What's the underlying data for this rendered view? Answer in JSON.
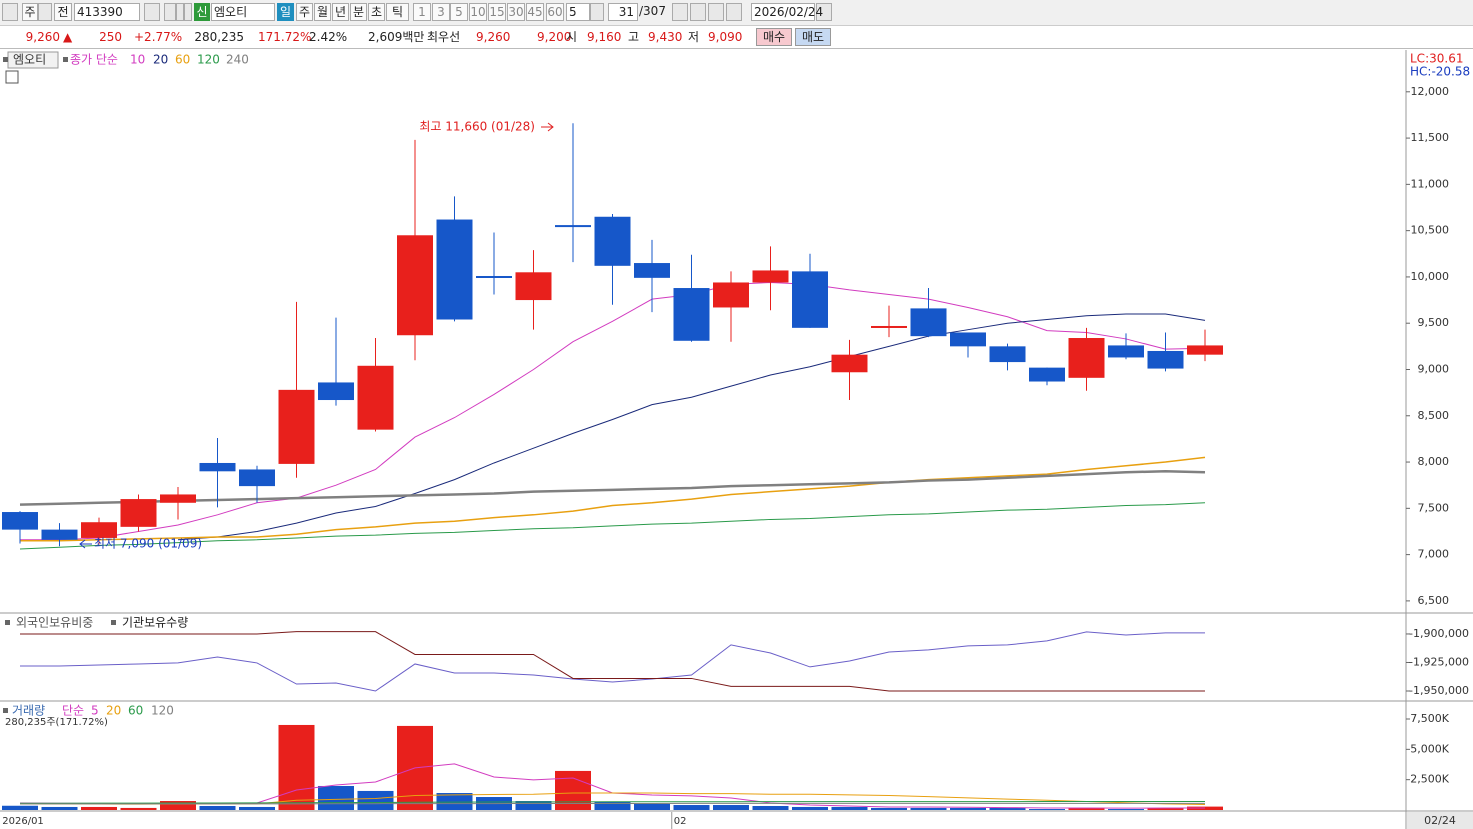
{
  "toolbar": {
    "period_type": "주",
    "prev": "전",
    "code": "413390",
    "credit": "신",
    "name": "엠오티",
    "intervals": [
      "일",
      "주",
      "월",
      "년",
      "분",
      "초",
      "틱"
    ],
    "minutes": [
      "1",
      "3",
      "5",
      "10",
      "15",
      "30",
      "45",
      "60"
    ],
    "count": "5",
    "position": "31",
    "total": "/307",
    "date": "2026/02/24"
  },
  "quote": {
    "price": "9,260",
    "arrow": "▲",
    "change": "250",
    "change_rate": "+2.77%",
    "volume": "280,235",
    "volume_rate": "171.72%",
    "turnover": "2.42%",
    "amount": "2,609백만",
    "best_label": "최우선",
    "ask": "9,260",
    "bid": "9,200",
    "open_label": "시",
    "open": "9,160",
    "high_label": "고",
    "high": "9,430",
    "low_label": "저",
    "low": "9,090",
    "buy": "매수",
    "sell": "매도"
  },
  "chart_data": [
    {
      "type": "candlestick",
      "title": "엠오티",
      "legend_title": "종가 단순",
      "lc": "LC:30.61",
      "hc": "HC:-20.58",
      "open": [
        7460,
        7270,
        7180,
        7300,
        7560,
        7990,
        7920,
        7980,
        8860,
        8350,
        9370,
        10620,
        10010,
        9750,
        10560,
        10650,
        10150,
        9880,
        9670,
        9940,
        10060,
        8970,
        9460,
        9660,
        9400,
        9250,
        9020,
        8910,
        9260,
        9200,
        9160
      ],
      "high": [
        7470,
        7340,
        7400,
        7650,
        7730,
        8260,
        7960,
        9730,
        9560,
        9340,
        11480,
        10870,
        10480,
        10290,
        11660,
        10680,
        10400,
        10240,
        10060,
        10330,
        10250,
        9320,
        9690,
        9880,
        9400,
        9280,
        9020,
        9450,
        9390,
        9400,
        9430
      ],
      "low": [
        7120,
        7090,
        7110,
        7250,
        7380,
        7510,
        7560,
        7830,
        8610,
        8330,
        9100,
        9520,
        9810,
        9430,
        10160,
        9700,
        9620,
        9300,
        9300,
        9640,
        9450,
        8670,
        9350,
        9350,
        9130,
        8990,
        8830,
        8770,
        9110,
        8980,
        9090
      ],
      "close": [
        7270,
        7160,
        7350,
        7600,
        7650,
        7900,
        7740,
        8780,
        8670,
        9040,
        10450,
        9540,
        10000,
        10050,
        10550,
        10120,
        9990,
        9310,
        9940,
        10070,
        9450,
        9160,
        9470,
        9360,
        9250,
        9080,
        8870,
        9340,
        9130,
        9010,
        9260
      ],
      "up_color": "#e8201c",
      "down_color": "#1657c9",
      "series": [
        {
          "name": "10",
          "color": "#d23cc0",
          "values": [
            7160,
            7160,
            7180,
            7250,
            7320,
            7430,
            7560,
            7610,
            7750,
            7920,
            8270,
            8480,
            8730,
            9000,
            9300,
            9520,
            9760,
            9810,
            9920,
            9940,
            9920,
            9860,
            9810,
            9760,
            9670,
            9570,
            9420,
            9400,
            9330,
            9220,
            9230
          ]
        },
        {
          "name": "20",
          "color": "#1a2a7a",
          "values": [
            null,
            null,
            null,
            null,
            7160,
            7190,
            7250,
            7340,
            7450,
            7520,
            7660,
            7810,
            7990,
            8150,
            8310,
            8460,
            8620,
            8700,
            8820,
            8940,
            9030,
            9140,
            9250,
            9360,
            9430,
            9500,
            9540,
            9580,
            9600,
            9600,
            9530
          ]
        },
        {
          "name": "60",
          "color": "#e8a010",
          "values": [
            7150,
            7150,
            7160,
            7170,
            7180,
            7190,
            7190,
            7220,
            7270,
            7300,
            7340,
            7360,
            7400,
            7430,
            7470,
            7530,
            7560,
            7600,
            7650,
            7680,
            7710,
            7740,
            7780,
            7810,
            7830,
            7850,
            7870,
            7920,
            7960,
            8000,
            8050
          ]
        },
        {
          "name": "120",
          "color": "#2a9a4a",
          "values": [
            7060,
            7080,
            7100,
            7110,
            7130,
            7150,
            7160,
            7180,
            7200,
            7210,
            7230,
            7240,
            7260,
            7280,
            7290,
            7310,
            7330,
            7340,
            7360,
            7380,
            7390,
            7410,
            7430,
            7440,
            7460,
            7480,
            7490,
            7510,
            7530,
            7540,
            7560
          ]
        },
        {
          "name": "240",
          "color": "#808080",
          "values": [
            7540,
            7550,
            7560,
            7570,
            7580,
            7590,
            7600,
            7610,
            7620,
            7630,
            7640,
            7650,
            7660,
            7680,
            7690,
            7700,
            7710,
            7720,
            7740,
            7750,
            7760,
            7770,
            7780,
            7800,
            7810,
            7830,
            7850,
            7870,
            7890,
            7900,
            7890
          ]
        }
      ],
      "annotations": [
        "최고 11,660 (01/28)",
        "최저 7,090 (01/09)"
      ],
      "ylim": [
        6380,
        12430
      ],
      "yticks": [
        {
          "value": 6500,
          "label": "6,500"
        },
        {
          "value": 7000,
          "label": "7,000"
        },
        {
          "value": 7500,
          "label": "7,500"
        },
        {
          "value": 8000,
          "label": "8,000"
        },
        {
          "value": 8500,
          "label": "8,500"
        },
        {
          "value": 9000,
          "label": "9,000"
        },
        {
          "value": 9500,
          "label": "9,500"
        },
        {
          "value": 10000,
          "label": "10,000"
        },
        {
          "value": 10500,
          "label": "10,500"
        },
        {
          "value": 11000,
          "label": "11,000"
        },
        {
          "value": 11500,
          "label": "11,500"
        },
        {
          "value": 12000,
          "label": "12,000"
        }
      ]
    },
    {
      "type": "line",
      "series": [
        {
          "name": "외국인보유비중",
          "color": "#6a5fc8",
          "values": [
            -1928100,
            -1928100,
            -1927200,
            -1926300,
            -1925400,
            -1920200,
            -1925400,
            -1943900,
            -1943000,
            -1950000,
            -1926300,
            -1934200,
            -1934200,
            -1936000,
            -1939500,
            -1942100,
            -1939500,
            -1936000,
            -1909600,
            -1916700,
            -1928900,
            -1923700,
            -1915800,
            -1914000,
            -1910500,
            -1909600,
            -1906100,
            -1898200,
            -1900900,
            -1899100,
            -1899100
          ]
        },
        {
          "name": "기관보유수량",
          "color": "#7a1a1a",
          "values": [
            -1900000,
            -1900000,
            -1900000,
            -1900000,
            -1900000,
            -1900000,
            -1900000,
            -1898000,
            -1898000,
            -1898000,
            -1918000,
            -1918000,
            -1918000,
            -1918000,
            -1939000,
            -1939000,
            -1939000,
            -1939000,
            -1946000,
            -1946000,
            -1946000,
            -1946000,
            -1950000,
            -1950000,
            -1950000,
            -1950000,
            -1950000,
            -1950000,
            -1950000,
            -1950000,
            -1950000
          ]
        }
      ],
      "ylim": [
        -1957900,
        -1882500
      ],
      "yticks": [
        {
          "value": -1950000,
          "label": "-1,950,000"
        },
        {
          "value": -1925000,
          "label": "-1,925,000"
        },
        {
          "value": -1900000,
          "label": "-1,900,000"
        }
      ]
    },
    {
      "type": "bar",
      "title": "거래량",
      "legend_title": "단순",
      "value_note": "280,235주(171.72%)",
      "values": [
        350,
        250,
        250,
        170,
        740,
        330,
        250,
        7010,
        1980,
        1570,
        6930,
        1400,
        1070,
        740,
        3220,
        660,
        500,
        410,
        410,
        330,
        250,
        250,
        170,
        170,
        170,
        170,
        80,
        170,
        80,
        170,
        280.235
      ],
      "colors": [
        "#1657c9",
        "#1657c9",
        "#e8201c",
        "#e8201c",
        "#e8201c",
        "#1657c9",
        "#1657c9",
        "#e8201c",
        "#1657c9",
        "#1657c9",
        "#e8201c",
        "#1657c9",
        "#1657c9",
        "#1657c9",
        "#e8201c",
        "#1657c9",
        "#1657c9",
        "#1657c9",
        "#1657c9",
        "#1657c9",
        "#1657c9",
        "#1657c9",
        "#1657c9",
        "#1657c9",
        "#1657c9",
        "#1657c9",
        "#1657c9",
        "#e8201c",
        "#1657c9",
        "#e8201c",
        "#e8201c"
      ],
      "series": [
        {
          "name": "5",
          "color": "#d23cc0",
          "values": [
            580,
            560,
            540,
            500,
            500,
            500,
            580,
            1650,
            2060,
            2310,
            3470,
            3800,
            2720,
            2480,
            2640,
            1400,
            1240,
            1160,
            990,
            580,
            410,
            330,
            250,
            250,
            230,
            200,
            170,
            170,
            150,
            170,
            170
          ]
        },
        {
          "name": "20",
          "color": "#e8a010",
          "values": [
            500,
            500,
            490,
            480,
            500,
            500,
            500,
            800,
            880,
            950,
            1200,
            1250,
            1280,
            1300,
            1400,
            1400,
            1400,
            1350,
            1350,
            1300,
            1300,
            1250,
            1200,
            1100,
            1000,
            900,
            800,
            700,
            600,
            500,
            450
          ]
        },
        {
          "name": "60",
          "color": "#2a9a4a",
          "values": [
            560,
            560,
            565,
            570,
            575,
            580,
            585,
            600,
            610,
            620,
            640,
            650,
            655,
            660,
            670,
            675,
            680,
            682,
            684,
            686,
            688,
            690,
            690,
            692,
            694,
            695,
            696,
            698,
            699,
            700,
            700
          ]
        },
        {
          "name": "120",
          "color": "#808080",
          "values": [
            500,
            500,
            500,
            500,
            500,
            505,
            505,
            510,
            515,
            520,
            525,
            530,
            530,
            535,
            540,
            540,
            540,
            545,
            545,
            545,
            545,
            550,
            550,
            550,
            550,
            550,
            550,
            550,
            550,
            550,
            550
          ]
        }
      ],
      "categories": [
        "2026/01",
        null,
        null,
        null,
        null,
        null,
        null,
        null,
        null,
        null,
        null,
        null,
        null,
        null,
        null,
        null,
        null,
        "02",
        null,
        null,
        null,
        null,
        null,
        null,
        null,
        null,
        null,
        null,
        null,
        null,
        null
      ],
      "cursor_date": "02/24",
      "ylim": [
        0,
        8820
      ],
      "yticks": [
        {
          "value": 2500,
          "label": "2,500K"
        },
        {
          "value": 5000,
          "label": "5,000K"
        },
        {
          "value": 7500,
          "label": "7,500K"
        }
      ]
    }
  ]
}
